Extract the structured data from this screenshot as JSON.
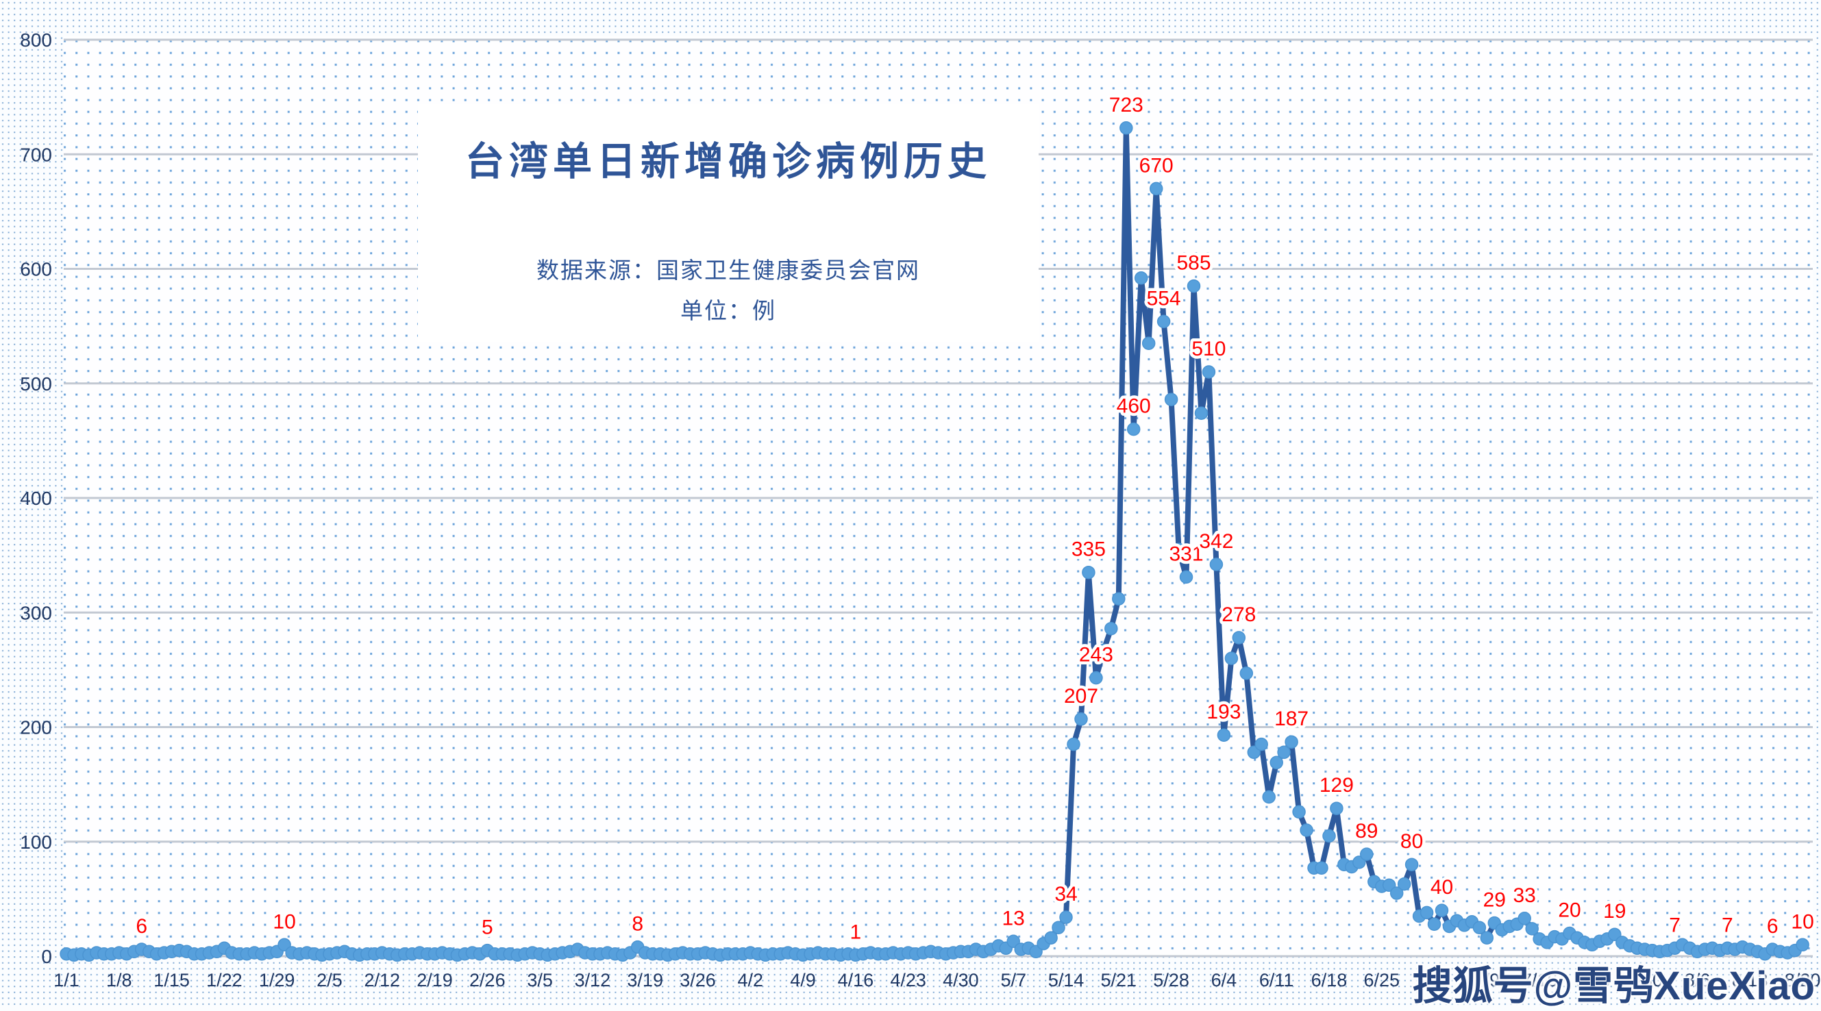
{
  "title": "台湾单日新增确诊病例历史",
  "subtitle_line1": "数据来源：国家卫生健康委员会官网",
  "subtitle_line2": "单位：例",
  "watermark": "搜狐号@雪鸮XueXiao",
  "colors": {
    "title_blue": "#2F5597",
    "axis_text": "#1F3864",
    "line": "#2E5B9E",
    "marker": "#57A0DC",
    "point_label": "#FF0000",
    "gridline": "#C2C8D2",
    "dot_pattern": "#6BA3DA"
  },
  "chart_data": {
    "type": "line",
    "title": "台湾单日新增确诊病例历史",
    "source": "数据来源：国家卫生健康委员会官网",
    "unit": "例",
    "xlabel": "",
    "ylabel": "",
    "ylim": [
      0,
      800
    ],
    "grid": "horizontal",
    "legend_position": "none",
    "start_date": "1/1",
    "end_date": "8/20",
    "y_ticks": [
      0,
      100,
      200,
      300,
      400,
      500,
      600,
      700,
      800
    ],
    "x_tick_labels": [
      "1/1",
      "1/8",
      "1/15",
      "1/22",
      "1/29",
      "2/5",
      "2/12",
      "2/19",
      "2/26",
      "3/5",
      "3/12",
      "3/19",
      "3/26",
      "4/2",
      "4/9",
      "4/16",
      "4/23",
      "4/30",
      "5/7",
      "5/14",
      "5/21",
      "5/28",
      "6/4",
      "6/11",
      "6/18",
      "6/25",
      "7/2",
      "7/9",
      "7/16",
      "7/23",
      "7/30",
      "8/6",
      "8/13",
      "8/20"
    ],
    "x_tick_every_n_days": 7,
    "values": [
      2,
      1,
      2,
      1,
      3,
      2,
      2,
      3,
      2,
      4,
      6,
      4,
      2,
      3,
      4,
      5,
      4,
      2,
      2,
      3,
      4,
      7,
      3,
      2,
      2,
      3,
      2,
      3,
      4,
      10,
      3,
      2,
      3,
      2,
      1,
      2,
      3,
      4,
      2,
      1,
      2,
      2,
      3,
      2,
      1,
      2,
      2,
      3,
      2,
      2,
      3,
      2,
      1,
      2,
      3,
      2,
      5,
      2,
      2,
      2,
      1,
      2,
      3,
      2,
      1,
      2,
      3,
      4,
      6,
      3,
      2,
      2,
      3,
      2,
      1,
      3,
      8,
      3,
      2,
      2,
      1,
      2,
      3,
      2,
      2,
      3,
      2,
      1,
      2,
      2,
      2,
      3,
      2,
      1,
      2,
      2,
      3,
      2,
      1,
      2,
      3,
      2,
      2,
      1,
      2,
      1,
      2,
      3,
      2,
      2,
      3,
      2,
      3,
      2,
      3,
      4,
      3,
      2,
      3,
      4,
      4,
      6,
      4,
      6,
      9,
      7,
      13,
      6,
      7,
      4,
      11,
      16,
      25,
      34,
      185,
      207,
      335,
      243,
      267,
      286,
      312,
      723,
      460,
      592,
      535,
      670,
      554,
      486,
      355,
      331,
      585,
      474,
      510,
      342,
      193,
      260,
      278,
      247,
      178,
      185,
      139,
      169,
      178,
      187,
      126,
      110,
      77,
      77,
      105,
      129,
      80,
      78,
      82,
      89,
      65,
      61,
      62,
      55,
      63,
      80,
      35,
      38,
      28,
      40,
      26,
      31,
      27,
      30,
      25,
      16,
      29,
      23,
      26,
      28,
      33,
      24,
      15,
      12,
      17,
      15,
      20,
      16,
      12,
      10,
      13,
      15,
      19,
      12,
      9,
      7,
      6,
      5,
      4,
      5,
      7,
      10,
      7,
      4,
      6,
      7,
      5,
      7,
      6,
      8,
      6,
      4,
      2,
      6,
      4,
      3,
      5,
      10
    ],
    "labeled_points": [
      {
        "index": 10,
        "date": "1/11",
        "label": "6"
      },
      {
        "index": 29,
        "date": "1/30",
        "label": "10"
      },
      {
        "index": 56,
        "date": "2/26",
        "label": "5"
      },
      {
        "index": 76,
        "date": "3/18",
        "label": "8"
      },
      {
        "index": 105,
        "date": "4/16",
        "label": "1"
      },
      {
        "index": 126,
        "date": "5/7",
        "label": "13"
      },
      {
        "index": 133,
        "date": "5/14",
        "label": "34"
      },
      {
        "index": 135,
        "date": "5/16",
        "label": "207"
      },
      {
        "index": 136,
        "date": "5/17",
        "label": "335"
      },
      {
        "index": 137,
        "date": "5/18",
        "label": "243"
      },
      {
        "index": 141,
        "date": "5/22",
        "label": "723"
      },
      {
        "index": 142,
        "date": "5/23",
        "label": "460"
      },
      {
        "index": 145,
        "date": "5/26",
        "label": "670"
      },
      {
        "index": 146,
        "date": "5/27",
        "label": "554"
      },
      {
        "index": 149,
        "date": "5/30",
        "label": "331"
      },
      {
        "index": 150,
        "date": "5/31",
        "label": "585"
      },
      {
        "index": 152,
        "date": "6/2",
        "label": "510"
      },
      {
        "index": 153,
        "date": "6/3",
        "label": "342"
      },
      {
        "index": 154,
        "date": "6/4",
        "label": "193"
      },
      {
        "index": 156,
        "date": "6/6",
        "label": "278"
      },
      {
        "index": 163,
        "date": "6/13",
        "label": "187"
      },
      {
        "index": 169,
        "date": "6/19",
        "label": "129"
      },
      {
        "index": 173,
        "date": "6/23",
        "label": "89"
      },
      {
        "index": 179,
        "date": "6/29",
        "label": "80"
      },
      {
        "index": 183,
        "date": "7/3",
        "label": "40"
      },
      {
        "index": 190,
        "date": "7/10",
        "label": "29"
      },
      {
        "index": 194,
        "date": "7/14",
        "label": "33"
      },
      {
        "index": 200,
        "date": "7/20",
        "label": "20"
      },
      {
        "index": 206,
        "date": "7/26",
        "label": "19"
      },
      {
        "index": 214,
        "date": "8/3",
        "label": "7"
      },
      {
        "index": 221,
        "date": "8/10",
        "label": "7"
      },
      {
        "index": 227,
        "date": "8/16",
        "label": "6"
      },
      {
        "index": 231,
        "date": "8/20",
        "label": "10"
      }
    ]
  }
}
